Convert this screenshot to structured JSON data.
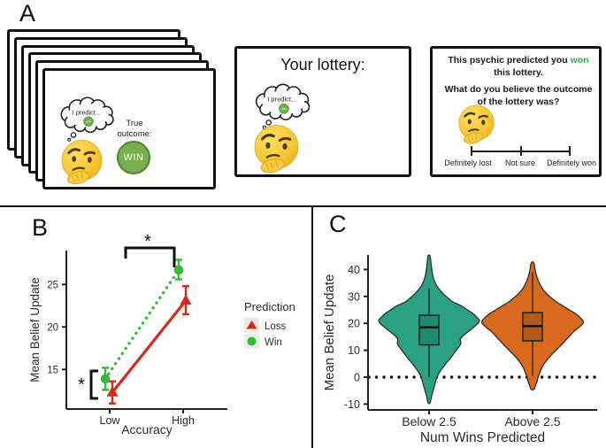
{
  "colors": {
    "loss_red": "#d6291b",
    "win_green": "#35bb35",
    "violin_teal": "#2aa183",
    "violin_teal_box": "#1f8a6e",
    "violin_orange": "#d9691c",
    "violin_orange_box": "#b65816",
    "outcome_green": "#76b04d",
    "highlight_green": "#3cb43c"
  },
  "panel_a": {
    "label": "A",
    "deck_card": {
      "bubble_text": "I predict...",
      "bubble_chip": "win",
      "outcome_label": "True outcome:",
      "outcome_value": "WIN"
    },
    "lottery_card": {
      "title": "Your lottery:",
      "bubble_text": "I predict...",
      "bubble_chip": "win"
    },
    "question_card": {
      "statement_pre": "This psychic predicted you ",
      "statement_highlight": "won",
      "statement_post": " this lottery.",
      "question": "What do you believe the outcome of the lottery was?",
      "scale_left": "Definitely lost",
      "scale_mid": "Not sure",
      "scale_right": "Definitely won"
    }
  },
  "panel_b": {
    "label": "B"
  },
  "panel_c": {
    "label": "C"
  },
  "chart_data": [
    {
      "id": "panel_b",
      "type": "line",
      "title": "",
      "xlabel": "Accuracy",
      "ylabel": "Mean Belief Update",
      "categories": [
        "Low",
        "High"
      ],
      "yticks": [
        15,
        20,
        25
      ],
      "ylim": [
        10.5,
        29
      ],
      "grid": false,
      "legend": {
        "title": "Prediction",
        "position": "right"
      },
      "series": [
        {
          "name": "Loss",
          "color": "#d6291b",
          "marker": "triangle",
          "line": "solid",
          "values": [
            12.3,
            23.1
          ],
          "err_low": [
            11.0,
            21.5
          ],
          "err_high": [
            13.6,
            24.8
          ]
        },
        {
          "name": "Win",
          "color": "#35bb35",
          "marker": "circle",
          "line": "dotted",
          "values": [
            13.9,
            26.7
          ],
          "err_low": [
            12.6,
            25.6
          ],
          "err_high": [
            15.2,
            27.9
          ]
        }
      ],
      "annotations": [
        {
          "kind": "bracket-top",
          "label": "*",
          "note": "Low vs High accuracy"
        },
        {
          "kind": "bracket-left",
          "label": "*",
          "note": "Win vs Loss at Low accuracy"
        }
      ]
    },
    {
      "id": "panel_c",
      "type": "violin",
      "title": "",
      "xlabel": "Num Wins Predicted",
      "ylabel": "Mean Belief Update",
      "categories": [
        "Below 2.5",
        "Above 2.5"
      ],
      "yticks": [
        -10,
        0,
        10,
        20,
        30,
        40
      ],
      "ylim": [
        -13,
        47
      ],
      "grid": false,
      "reference_line_y": 0,
      "violins": [
        {
          "label": "Below 2.5",
          "fill": "#2aa183",
          "box_fill": "#1f8a6e",
          "median": 18.5,
          "q1": 12,
          "q3": 23,
          "whisker_low": 0,
          "whisker_high": 33,
          "min": -9.5,
          "max": 45,
          "profile": [
            [
              -9.5,
              0.02
            ],
            [
              -7,
              0.05
            ],
            [
              -5,
              0.08
            ],
            [
              -3,
              0.11
            ],
            [
              -1,
              0.14
            ],
            [
              1,
              0.18
            ],
            [
              3,
              0.25
            ],
            [
              5,
              0.33
            ],
            [
              7,
              0.42
            ],
            [
              9,
              0.5
            ],
            [
              11,
              0.58
            ],
            [
              12.5,
              0.63
            ],
            [
              14,
              0.62
            ],
            [
              15.5,
              0.68
            ],
            [
              17,
              0.78
            ],
            [
              18.5,
              0.88
            ],
            [
              20,
              0.97
            ],
            [
              21,
              1
            ],
            [
              22,
              0.96
            ],
            [
              23.5,
              0.88
            ],
            [
              25,
              0.76
            ],
            [
              26.5,
              0.64
            ],
            [
              28,
              0.47
            ],
            [
              29.5,
              0.37
            ],
            [
              31,
              0.28
            ],
            [
              32.5,
              0.21
            ],
            [
              34,
              0.15
            ],
            [
              36,
              0.1
            ],
            [
              38,
              0.07
            ],
            [
              40,
              0.055
            ],
            [
              42,
              0.04
            ],
            [
              45,
              0.02
            ]
          ]
        },
        {
          "label": "Above 2.5",
          "fill": "#d9691c",
          "box_fill": "#b65816",
          "median": 19,
          "q1": 13.5,
          "q3": 24,
          "whisker_low": 0.5,
          "whisker_high": 39,
          "min": -4.5,
          "max": 42.5,
          "profile": [
            [
              -4.5,
              0.03
            ],
            [
              -3,
              0.06
            ],
            [
              -1.5,
              0.09
            ],
            [
              0,
              0.11
            ],
            [
              1.5,
              0.14
            ],
            [
              3,
              0.17
            ],
            [
              5,
              0.23
            ],
            [
              7,
              0.31
            ],
            [
              9,
              0.41
            ],
            [
              11,
              0.52
            ],
            [
              13,
              0.62
            ],
            [
              15,
              0.72
            ],
            [
              17,
              0.82
            ],
            [
              18.5,
              0.92
            ],
            [
              20,
              1
            ],
            [
              21,
              1
            ],
            [
              22,
              0.95
            ],
            [
              23.5,
              0.86
            ],
            [
              25,
              0.73
            ],
            [
              26.5,
              0.6
            ],
            [
              28,
              0.47
            ],
            [
              29.5,
              0.37
            ],
            [
              31,
              0.28
            ],
            [
              32.5,
              0.21
            ],
            [
              34,
              0.16
            ],
            [
              36,
              0.11
            ],
            [
              38,
              0.075
            ],
            [
              40,
              0.05
            ],
            [
              42.5,
              0.025
            ]
          ]
        }
      ]
    }
  ]
}
